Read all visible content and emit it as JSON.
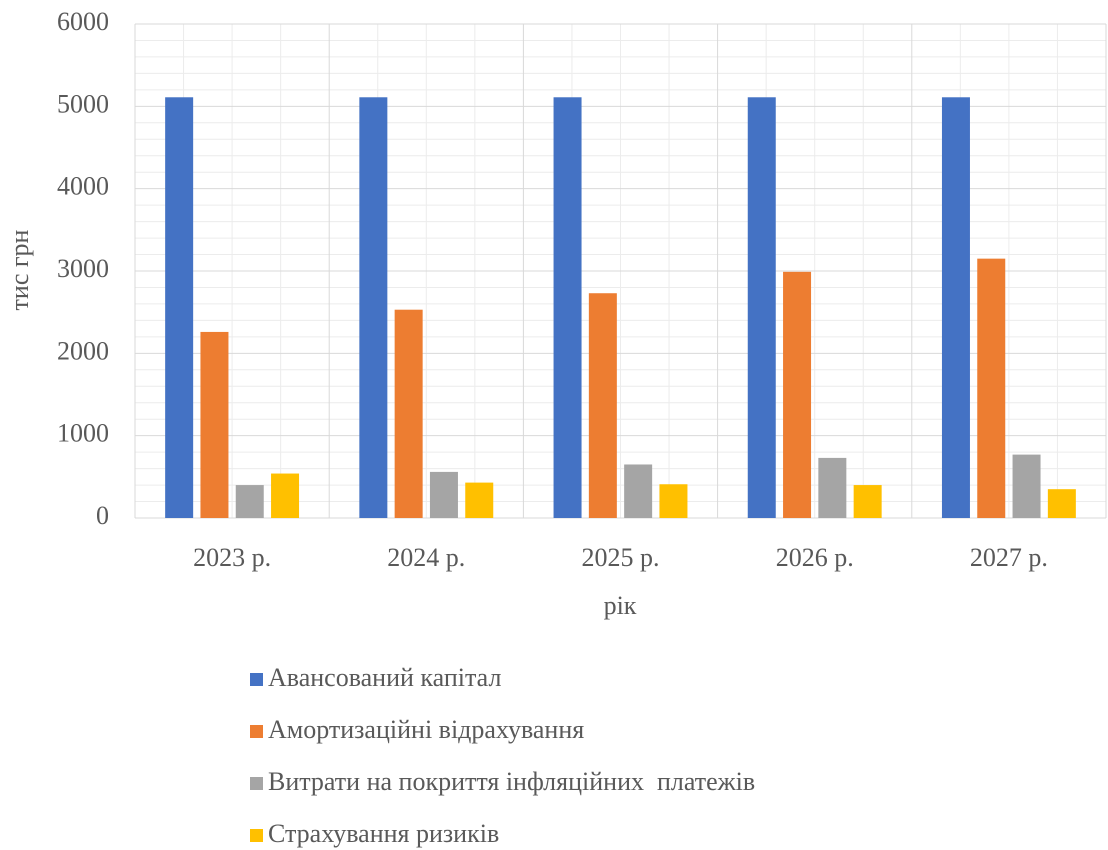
{
  "chart_data": {
    "type": "bar",
    "x_label": "рік",
    "y_label": "тис грн",
    "categories": [
      "2023 р.",
      "2024 р.",
      "2025 р.",
      "2026 р.",
      "2027 р."
    ],
    "series": [
      {
        "name": "Авансований капітал",
        "color": "#4472c4",
        "values": [
          5110,
          5110,
          5110,
          5110,
          5110
        ]
      },
      {
        "name": "Амортизаційні відрахування",
        "color": "#ed7d31",
        "values": [
          2260,
          2530,
          2730,
          2990,
          3150
        ]
      },
      {
        "name": "Витрати на покриття інфляційних  платежів",
        "color": "#a5a5a5",
        "values": [
          400,
          560,
          650,
          730,
          770
        ]
      },
      {
        "name": "Страхування ризиків",
        "color": "#ffc000",
        "values": [
          540,
          430,
          410,
          400,
          350
        ]
      }
    ],
    "ylim": [
      0,
      6000
    ],
    "yticks": [
      0,
      1000,
      2000,
      3000,
      4000,
      5000,
      6000
    ],
    "grid": true,
    "legend": "bottom"
  }
}
